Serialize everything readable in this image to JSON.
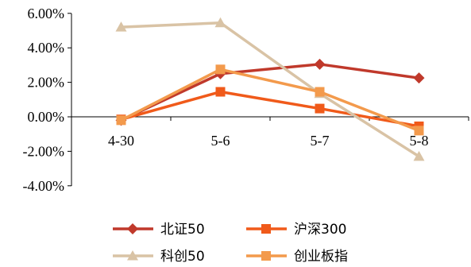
{
  "chart_data": {
    "type": "line",
    "categories": [
      "4-30",
      "5-6",
      "5-7",
      "5-8"
    ],
    "ylim": [
      -4.0,
      6.0
    ],
    "yticks": [
      "6.00%",
      "4.00%",
      "2.00%",
      "0.00%",
      "-2.00%",
      "-4.00%"
    ],
    "ytick_values": [
      6,
      4,
      2,
      0,
      -2,
      -4
    ],
    "grid": false,
    "legend_position": "bottom",
    "series": [
      {
        "name": "北证50",
        "values": [
          -0.2,
          2.5,
          3.05,
          2.25
        ],
        "color": "#C0392B",
        "marker": "diamond"
      },
      {
        "name": "沪深300",
        "values": [
          -0.15,
          1.45,
          0.48,
          -0.55
        ],
        "color": "#F05A1A",
        "marker": "square"
      },
      {
        "name": "科创50",
        "values": [
          5.2,
          5.45,
          1.35,
          -2.3
        ],
        "color": "#D9C3A5",
        "marker": "triangle"
      },
      {
        "name": "创业板指",
        "values": [
          -0.2,
          2.75,
          1.45,
          -0.8
        ],
        "color": "#F39A4C",
        "marker": "square"
      }
    ]
  }
}
